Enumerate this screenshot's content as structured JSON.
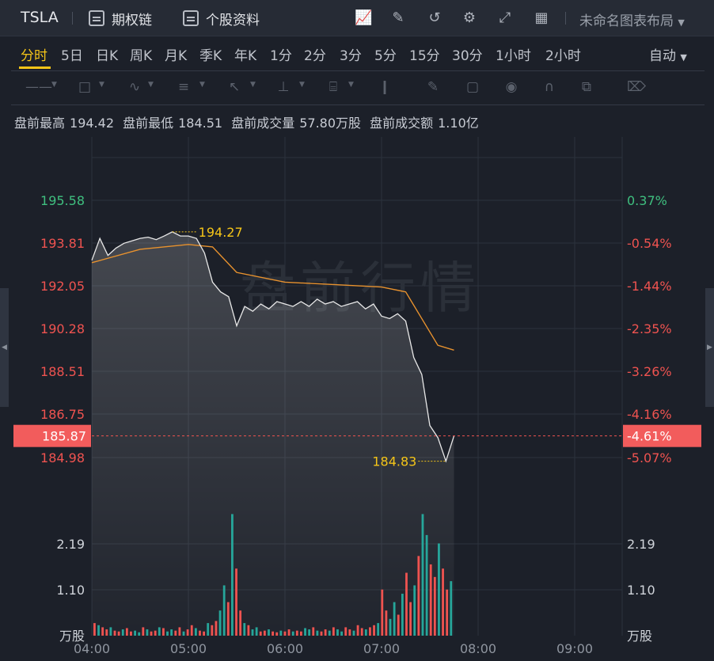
{
  "toolbar": {
    "ticker": "TSLA",
    "options_chain": "期权链",
    "stock_profile": "个股资料",
    "layout_name": "未命名图表布局"
  },
  "timeframes": [
    "分时",
    "5日",
    "日K",
    "周K",
    "月K",
    "季K",
    "年K",
    "1分",
    "2分",
    "3分",
    "5分",
    "15分",
    "30分",
    "1小时",
    "2小时"
  ],
  "active_timeframe": "分时",
  "adjust_mode": "自动",
  "stats": {
    "high_label": "盘前最高",
    "high": "194.42",
    "low_label": "盘前最低",
    "low": "184.51",
    "volume_label": "盘前成交量",
    "volume": "57.80万股",
    "amount_label": "盘前成交额",
    "amount": "1.10亿"
  },
  "watermark": "盘前行情",
  "colors": {
    "up": "#ef5350",
    "down": "#26a69a",
    "green_text": "#3fbf7f",
    "red_text": "#ef5350",
    "avg_line": "#e8922e",
    "highlight": "#f5c518",
    "bg": "#1c2029"
  },
  "chart_data": {
    "type": "line",
    "price_axis_left": [
      "195.58",
      "193.81",
      "192.05",
      "190.28",
      "188.51",
      "186.75",
      "184.98"
    ],
    "pct_axis_right": [
      "0.37%",
      "-0.54%",
      "-1.44%",
      "-2.35%",
      "-3.26%",
      "-4.16%",
      "-5.07%"
    ],
    "current_price": "185.87",
    "current_pct": "-4.61%",
    "max_marker": "194.27",
    "min_marker": "184.83",
    "volume_axis": [
      "2.19",
      "1.10",
      "万股"
    ],
    "x_ticks": [
      "04:00",
      "05:00",
      "06:00",
      "07:00",
      "08:00",
      "09:00"
    ],
    "price_series": [
      [
        "04:00",
        193.1
      ],
      [
        "04:05",
        194.0
      ],
      [
        "04:10",
        193.3
      ],
      [
        "04:15",
        193.6
      ],
      [
        "04:20",
        193.8
      ],
      [
        "04:25",
        193.9
      ],
      [
        "04:30",
        194.0
      ],
      [
        "04:35",
        194.05
      ],
      [
        "04:40",
        193.95
      ],
      [
        "04:45",
        194.1
      ],
      [
        "04:50",
        194.27
      ],
      [
        "04:55",
        194.1
      ],
      [
        "05:00",
        194.1
      ],
      [
        "05:05",
        194.0
      ],
      [
        "05:10",
        193.4
      ],
      [
        "05:15",
        192.2
      ],
      [
        "05:20",
        191.8
      ],
      [
        "05:25",
        191.6
      ],
      [
        "05:30",
        190.4
      ],
      [
        "05:35",
        191.2
      ],
      [
        "05:40",
        191.0
      ],
      [
        "05:45",
        191.3
      ],
      [
        "05:50",
        191.1
      ],
      [
        "05:55",
        191.4
      ],
      [
        "06:00",
        191.3
      ],
      [
        "06:05",
        191.2
      ],
      [
        "06:10",
        191.4
      ],
      [
        "06:15",
        191.2
      ],
      [
        "06:20",
        191.5
      ],
      [
        "06:25",
        191.3
      ],
      [
        "06:30",
        191.4
      ],
      [
        "06:35",
        191.2
      ],
      [
        "06:40",
        191.3
      ],
      [
        "06:45",
        191.4
      ],
      [
        "06:50",
        191.1
      ],
      [
        "06:55",
        191.3
      ],
      [
        "07:00",
        190.8
      ],
      [
        "07:05",
        190.7
      ],
      [
        "07:10",
        190.9
      ],
      [
        "07:15",
        190.6
      ],
      [
        "07:20",
        189.1
      ],
      [
        "07:25",
        188.4
      ],
      [
        "07:30",
        186.3
      ],
      [
        "07:35",
        185.8
      ],
      [
        "07:40",
        184.83
      ],
      [
        "07:45",
        185.87
      ]
    ],
    "avg_series": [
      [
        "04:00",
        193.0
      ],
      [
        "04:30",
        193.55
      ],
      [
        "05:00",
        193.75
      ],
      [
        "05:15",
        193.65
      ],
      [
        "05:30",
        192.6
      ],
      [
        "06:00",
        192.2
      ],
      [
        "06:30",
        192.1
      ],
      [
        "07:00",
        192.0
      ],
      [
        "07:15",
        191.8
      ],
      [
        "07:25",
        190.7
      ],
      [
        "07:35",
        189.6
      ],
      [
        "07:45",
        189.4
      ]
    ],
    "volume_series": [
      0.3,
      0.25,
      0.2,
      0.15,
      0.2,
      0.12,
      0.1,
      0.15,
      0.18,
      0.1,
      0.12,
      0.08,
      0.2,
      0.15,
      0.1,
      0.12,
      0.2,
      0.18,
      0.1,
      0.15,
      0.12,
      0.2,
      0.1,
      0.15,
      0.25,
      0.18,
      0.12,
      0.1,
      0.3,
      0.25,
      0.35,
      0.6,
      1.2,
      0.8,
      2.9,
      1.6,
      0.6,
      0.3,
      0.25,
      0.15,
      0.2,
      0.1,
      0.12,
      0.15,
      0.1,
      0.08,
      0.12,
      0.1,
      0.15,
      0.1,
      0.12,
      0.1,
      0.18,
      0.15,
      0.2,
      0.12,
      0.1,
      0.15,
      0.12,
      0.2,
      0.15,
      0.1,
      0.2,
      0.15,
      0.12,
      0.25,
      0.18,
      0.15,
      0.2,
      0.25,
      0.3,
      1.1,
      0.6,
      0.4,
      0.8,
      0.5,
      1.0,
      1.5,
      0.8,
      1.2,
      1.9,
      2.9,
      2.4,
      1.7,
      1.4,
      2.2,
      1.6,
      1.1,
      1.3
    ]
  }
}
